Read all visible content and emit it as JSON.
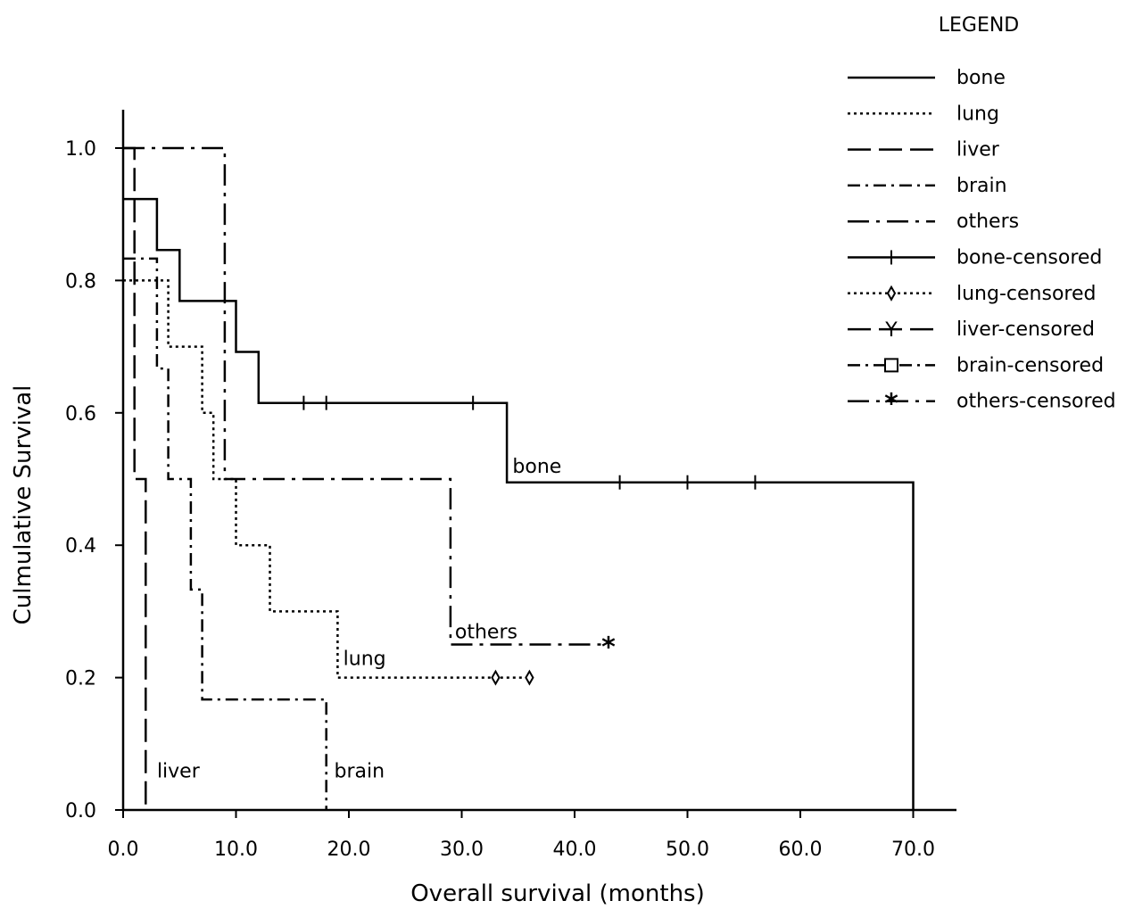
{
  "chart_data": {
    "type": "line",
    "subtype": "kaplan-meier step",
    "title": "",
    "xlabel": "Overall survival (months)",
    "ylabel": "Culmulative Survival",
    "xlim": [
      0,
      73
    ],
    "ylim": [
      0,
      1.05
    ],
    "x_ticks": [
      "0.0",
      "10.0",
      "20.0",
      "30.0",
      "40.0",
      "50.0",
      "60.0",
      "70.0"
    ],
    "x_tick_values": [
      0,
      10,
      20,
      30,
      40,
      50,
      60,
      70
    ],
    "y_ticks": [
      "0.0",
      "0.2",
      "0.4",
      "0.6",
      "0.8",
      "1.0"
    ],
    "y_tick_values": [
      0,
      0.2,
      0.4,
      0.6,
      0.8,
      1.0
    ],
    "grid": false,
    "legend_title": "LEGEND",
    "legend_position": "top-right",
    "series": [
      {
        "name": "bone",
        "dash": "solid",
        "label_at": [
          34.5,
          0.52
        ],
        "x": [
          0,
          3,
          3,
          5,
          5,
          10,
          10,
          12,
          12,
          34,
          34,
          70,
          70
        ],
        "y": [
          0.923,
          0.923,
          0.846,
          0.846,
          0.769,
          0.769,
          0.692,
          0.692,
          0.615,
          0.615,
          0.495,
          0.495,
          0
        ]
      },
      {
        "name": "lung",
        "dash": "dotted",
        "label_at": [
          19.5,
          0.23
        ],
        "x": [
          0,
          1,
          1,
          4,
          4,
          7,
          7,
          8,
          8,
          10,
          10,
          13,
          13,
          19,
          19,
          36
        ],
        "y": [
          0.8,
          0.8,
          0.8,
          0.8,
          0.7,
          0.7,
          0.6,
          0.6,
          0.5,
          0.5,
          0.4,
          0.4,
          0.3,
          0.3,
          0.2,
          0.2
        ]
      },
      {
        "name": "liver",
        "dash": "longdash",
        "label_at": [
          3,
          0.06
        ],
        "x": [
          0,
          1,
          1,
          2,
          2
        ],
        "y": [
          1.0,
          1.0,
          0.5,
          0.5,
          0
        ]
      },
      {
        "name": "brain",
        "dash": "dashdot",
        "label_at": [
          18.7,
          0.06
        ],
        "x": [
          0,
          1,
          1,
          3,
          3,
          4,
          4,
          6,
          6,
          7,
          7,
          18,
          18
        ],
        "y": [
          0.833,
          0.833,
          0.833,
          0.833,
          0.667,
          0.667,
          0.5,
          0.5,
          0.333,
          0.333,
          0.167,
          0.167,
          0
        ]
      },
      {
        "name": "others",
        "dash": "dashdotlong",
        "label_at": [
          29.4,
          0.27
        ],
        "x": [
          0,
          1,
          1,
          9,
          9,
          29,
          29,
          43
        ],
        "y": [
          1.0,
          1.0,
          1.0,
          1.0,
          0.5,
          0.5,
          0.25,
          0.25
        ]
      }
    ],
    "censored": [
      {
        "name": "bone-censored",
        "marker": "tick",
        "x": [
          16,
          18,
          31,
          44,
          50,
          56
        ],
        "y": [
          0.615,
          0.615,
          0.615,
          0.495,
          0.495,
          0.495
        ]
      },
      {
        "name": "lung-censored",
        "marker": "diamond",
        "x": [
          33,
          36
        ],
        "y": [
          0.2,
          0.2
        ]
      },
      {
        "name": "others-censored",
        "marker": "asterisk",
        "x": [
          43
        ],
        "y": [
          0.25
        ]
      }
    ],
    "legend": [
      {
        "label": "bone",
        "dash": "solid",
        "marker": ""
      },
      {
        "label": "lung",
        "dash": "dotted",
        "marker": ""
      },
      {
        "label": "liver",
        "dash": "longdash",
        "marker": ""
      },
      {
        "label": "brain",
        "dash": "dashdot",
        "marker": ""
      },
      {
        "label": "others",
        "dash": "dashdotlong",
        "marker": ""
      },
      {
        "label": "bone-censored",
        "dash": "solid",
        "marker": "tick"
      },
      {
        "label": "lung-censored",
        "dash": "dotted",
        "marker": "diamond"
      },
      {
        "label": "liver-censored",
        "dash": "longdash",
        "marker": "Y"
      },
      {
        "label": "brain-censored",
        "dash": "dashdot",
        "marker": "square"
      },
      {
        "label": "others-censored",
        "dash": "dashdotlong",
        "marker": "asterisk"
      }
    ]
  }
}
